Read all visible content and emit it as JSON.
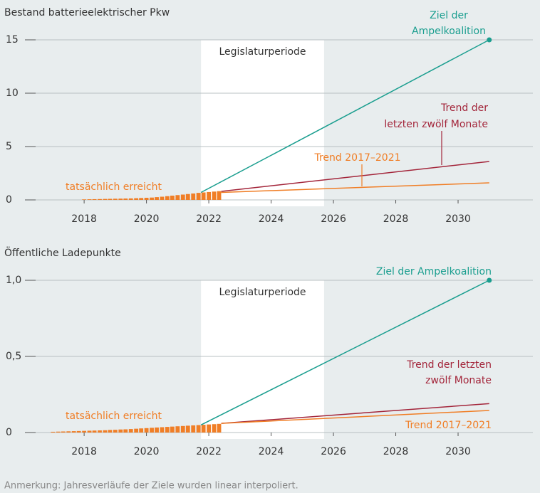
{
  "chart_data": [
    {
      "type": "line",
      "title": "Bestand batterieelektrischer Pkw",
      "xlim": [
        2016.1,
        2032.4
      ],
      "xticks": [
        2018,
        2020,
        2022,
        2024,
        2026,
        2028,
        2030
      ],
      "ylim": [
        0,
        15
      ],
      "yticks": [
        0,
        5,
        10,
        15
      ],
      "grid": true,
      "band": {
        "label": "Legislaturperiode",
        "x": [
          2021.75,
          2025.7
        ]
      },
      "series": [
        {
          "name": [
            "tatsächlich erreicht"
          ],
          "kind": "bar",
          "color": "#f07e26",
          "x": [
            2018,
            2018.17,
            2018.33,
            2018.5,
            2018.67,
            2018.83,
            2019,
            2019.17,
            2019.33,
            2019.5,
            2019.67,
            2019.83,
            2020,
            2020.17,
            2020.33,
            2020.5,
            2020.67,
            2020.83,
            2021,
            2021.17,
            2021.33,
            2021.5,
            2021.67,
            2021.83,
            2022,
            2022.17,
            2022.33
          ],
          "values": [
            0.05,
            0.06,
            0.07,
            0.08,
            0.09,
            0.1,
            0.11,
            0.12,
            0.13,
            0.14,
            0.16,
            0.18,
            0.2,
            0.22,
            0.26,
            0.3,
            0.35,
            0.4,
            0.45,
            0.5,
            0.55,
            0.6,
            0.66,
            0.7,
            0.74,
            0.78,
            0.82
          ]
        },
        {
          "name": [
            "Ziel der",
            "Ampelkoalition"
          ],
          "kind": "line",
          "color": "#1a9e8f",
          "end_marker": true,
          "x": [
            2021.75,
            2031
          ],
          "values": [
            0.7,
            15
          ]
        },
        {
          "name": [
            "Trend der",
            "letzten zwölf Monate"
          ],
          "kind": "line",
          "color": "#a3253a",
          "x": [
            2022.4,
            2031
          ],
          "values": [
            0.8,
            3.6
          ]
        },
        {
          "name": [
            "Trend 2017–2021"
          ],
          "kind": "line",
          "color": "#f07e26",
          "x": [
            2022.4,
            2031
          ],
          "values": [
            0.7,
            1.6
          ]
        }
      ]
    },
    {
      "type": "line",
      "title": "Öffentliche Ladepunkte",
      "xlim": [
        2016.1,
        2032.4
      ],
      "xticks": [
        2018,
        2020,
        2022,
        2024,
        2026,
        2028,
        2030
      ],
      "ylim": [
        0,
        1
      ],
      "yticks": [
        0,
        {
          "value": 0.5,
          "label": "0,5"
        },
        {
          "value": 1,
          "label": "1,0"
        }
      ],
      "grid": true,
      "band": {
        "label": "Legislaturperiode",
        "x": [
          2021.75,
          2025.7
        ]
      },
      "series": [
        {
          "name": [
            "tatsächlich erreicht"
          ],
          "kind": "bar",
          "color": "#f07e26",
          "x": [
            2017,
            2017.17,
            2017.33,
            2017.5,
            2017.67,
            2017.83,
            2018,
            2018.17,
            2018.33,
            2018.5,
            2018.67,
            2018.83,
            2019,
            2019.17,
            2019.33,
            2019.5,
            2019.67,
            2019.83,
            2020,
            2020.17,
            2020.33,
            2020.5,
            2020.67,
            2020.83,
            2021,
            2021.17,
            2021.33,
            2021.5,
            2021.67,
            2021.83,
            2022,
            2022.17,
            2022.33
          ],
          "values": [
            0.005,
            0.006,
            0.007,
            0.008,
            0.009,
            0.01,
            0.011,
            0.012,
            0.013,
            0.014,
            0.015,
            0.017,
            0.018,
            0.02,
            0.021,
            0.023,
            0.025,
            0.027,
            0.029,
            0.031,
            0.033,
            0.035,
            0.037,
            0.039,
            0.041,
            0.043,
            0.045,
            0.047,
            0.049,
            0.051,
            0.053,
            0.055,
            0.057
          ]
        },
        {
          "name": [
            "Ziel der Ampelkoalition"
          ],
          "kind": "line",
          "color": "#1a9e8f",
          "end_marker": true,
          "x": [
            2021.75,
            2031
          ],
          "values": [
            0.05,
            1
          ]
        },
        {
          "name": [
            "Trend der letzten",
            "zwölf Monate"
          ],
          "kind": "line",
          "color": "#a3253a",
          "x": [
            2022.4,
            2031
          ],
          "values": [
            0.06,
            0.19
          ]
        },
        {
          "name": [
            "Trend 2017–2021"
          ],
          "kind": "line",
          "color": "#f07e26",
          "x": [
            2022.4,
            2031
          ],
          "values": [
            0.06,
            0.145
          ]
        }
      ]
    }
  ],
  "note": "Anmerkung: Jahresverläufe der Ziele wurden linear interpoliert."
}
